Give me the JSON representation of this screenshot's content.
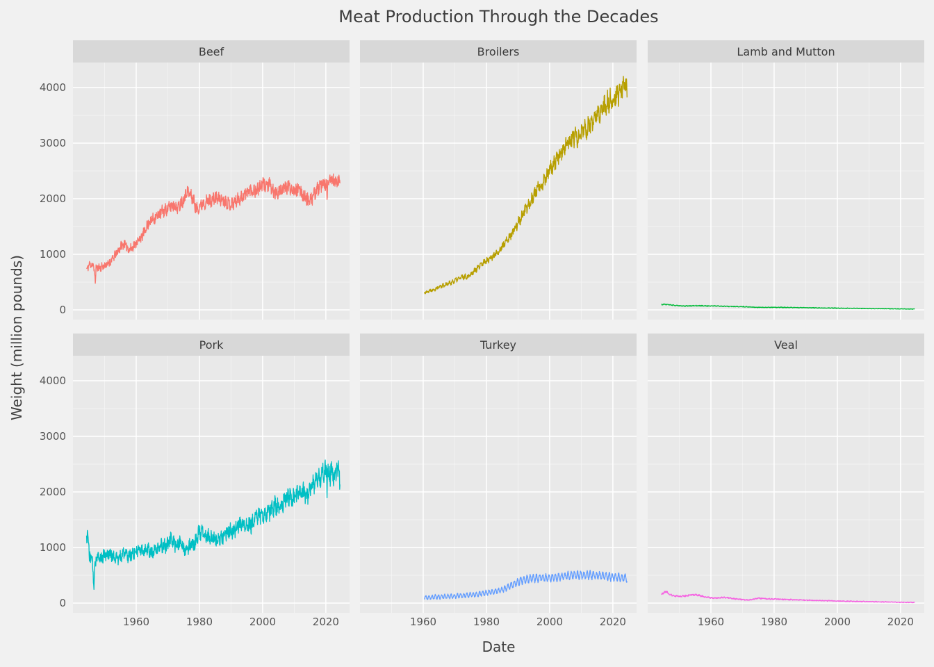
{
  "chart_data": {
    "type": "line",
    "title": "Meat Production Through the Decades",
    "xlabel": "Date",
    "ylabel": "Weight (million pounds)",
    "legend": "none",
    "grid": "white major and minor gridlines on grey panels",
    "x_ticks": [
      1960,
      1980,
      2000,
      2020
    ],
    "y_ticks": [
      0,
      1000,
      2000,
      3000,
      4000
    ],
    "x_minor_gridlines": [
      1950,
      1970,
      1990,
      2010
    ],
    "y_minor_gridlines": [
      500,
      1500,
      2500,
      3500
    ],
    "x_domain": [
      1940,
      2027.5
    ],
    "y_domain": [
      -175,
      4450
    ],
    "colors": {
      "page_bg": "#F1F1F1",
      "panel_bg": "#E9E9E9",
      "strip_bg": "#D8D8D8",
      "gridline": "#FFFFFF",
      "title_text": "#3d3d3d",
      "tick_text": "#555555"
    },
    "facets": [
      {
        "name": "Beef",
        "color": "#F8766D",
        "start_year": 1944.3,
        "end_year": 2024.5,
        "trend_anchors": [
          [
            1944.3,
            720
          ],
          [
            1945,
            800
          ],
          [
            1946,
            830
          ],
          [
            1946.9,
            700
          ],
          [
            1947.05,
            420
          ],
          [
            1947.3,
            760
          ],
          [
            1949,
            770
          ],
          [
            1951,
            820
          ],
          [
            1953,
            950
          ],
          [
            1955,
            1130
          ],
          [
            1956,
            1190
          ],
          [
            1958,
            1080
          ],
          [
            1960,
            1200
          ],
          [
            1962,
            1330
          ],
          [
            1964,
            1580
          ],
          [
            1966,
            1660
          ],
          [
            1968,
            1760
          ],
          [
            1970,
            1820
          ],
          [
            1972,
            1900
          ],
          [
            1973,
            1820
          ],
          [
            1975,
            2000
          ],
          [
            1976,
            2150
          ],
          [
            1978,
            2000
          ],
          [
            1979,
            1810
          ],
          [
            1981,
            1920
          ],
          [
            1983,
            1960
          ],
          [
            1985,
            2010
          ],
          [
            1987,
            1990
          ],
          [
            1990,
            1900
          ],
          [
            1992,
            1980
          ],
          [
            1994,
            2060
          ],
          [
            1996,
            2160
          ],
          [
            1998,
            2150
          ],
          [
            2000,
            2250
          ],
          [
            2002,
            2250
          ],
          [
            2004,
            2080
          ],
          [
            2006,
            2170
          ],
          [
            2008,
            2210
          ],
          [
            2010,
            2180
          ],
          [
            2012,
            2130
          ],
          [
            2014,
            1990
          ],
          [
            2015,
            1940
          ],
          [
            2017,
            2150
          ],
          [
            2019,
            2250
          ],
          [
            2020.2,
            2280
          ],
          [
            2020.35,
            1820
          ],
          [
            2020.6,
            2250
          ],
          [
            2021.5,
            2360
          ],
          [
            2023,
            2290
          ],
          [
            2024.5,
            2320
          ]
        ],
        "noise": {
          "base": 40,
          "prop": 0.035
        },
        "seasonal": {
          "base": 12,
          "prop": 0.008,
          "phase": 0
        },
        "seed": 11
      },
      {
        "name": "Broilers",
        "color": "#B79F00",
        "start_year": 1960.4,
        "end_year": 2024.5,
        "trend_anchors": [
          [
            1960.4,
            310
          ],
          [
            1962,
            345
          ],
          [
            1964,
            385
          ],
          [
            1966,
            435
          ],
          [
            1968,
            470
          ],
          [
            1970,
            525
          ],
          [
            1972,
            585
          ],
          [
            1974,
            600
          ],
          [
            1976,
            690
          ],
          [
            1978,
            790
          ],
          [
            1980,
            890
          ],
          [
            1982,
            960
          ],
          [
            1984,
            1060
          ],
          [
            1986,
            1210
          ],
          [
            1988,
            1360
          ],
          [
            1990,
            1560
          ],
          [
            1992,
            1760
          ],
          [
            1994,
            1960
          ],
          [
            1996,
            2160
          ],
          [
            1998,
            2310
          ],
          [
            2000,
            2510
          ],
          [
            2002,
            2670
          ],
          [
            2004,
            2870
          ],
          [
            2006,
            3020
          ],
          [
            2008,
            3130
          ],
          [
            2009,
            3060
          ],
          [
            2010,
            3200
          ],
          [
            2012,
            3270
          ],
          [
            2014,
            3400
          ],
          [
            2016,
            3560
          ],
          [
            2018,
            3710
          ],
          [
            2020,
            3800
          ],
          [
            2022,
            3900
          ],
          [
            2023.5,
            4020
          ],
          [
            2024.5,
            3960
          ]
        ],
        "noise": {
          "base": 12,
          "prop": 0.04
        },
        "seasonal": {
          "base": 8,
          "prop": 0.02,
          "phase": 0
        },
        "seed": 22
      },
      {
        "name": "Lamb and Mutton",
        "color": "#00BA38",
        "start_year": 1944.3,
        "end_year": 2024.5,
        "trend_anchors": [
          [
            1944.3,
            95
          ],
          [
            1945.5,
            100
          ],
          [
            1947,
            90
          ],
          [
            1949,
            78
          ],
          [
            1951,
            70
          ],
          [
            1953,
            71
          ],
          [
            1955,
            75
          ],
          [
            1957,
            74
          ],
          [
            1959,
            70
          ],
          [
            1961,
            72
          ],
          [
            1963,
            68
          ],
          [
            1965,
            63
          ],
          [
            1967,
            60
          ],
          [
            1969,
            58
          ],
          [
            1971,
            56
          ],
          [
            1973,
            50
          ],
          [
            1975,
            44
          ],
          [
            1978,
            44
          ],
          [
            1981,
            46
          ],
          [
            1984,
            43
          ],
          [
            1987,
            41
          ],
          [
            1990,
            40
          ],
          [
            1993,
            37
          ],
          [
            1996,
            34
          ],
          [
            1999,
            32
          ],
          [
            2002,
            30
          ],
          [
            2005,
            28
          ],
          [
            2008,
            26
          ],
          [
            2011,
            24
          ],
          [
            2014,
            22
          ],
          [
            2017,
            20
          ],
          [
            2020,
            18
          ],
          [
            2024.5,
            15
          ]
        ],
        "noise": {
          "base": 3.5,
          "prop": 0.04
        },
        "seasonal": {
          "base": 1.5,
          "prop": 0.02,
          "phase": 0
        },
        "seed": 33
      },
      {
        "name": "Pork",
        "color": "#00BFC4",
        "start_year": 1944.3,
        "end_year": 2024.5,
        "trend_anchors": [
          [
            1944.3,
            1180
          ],
          [
            1944.6,
            1260
          ],
          [
            1945.2,
            880
          ],
          [
            1945.8,
            800
          ],
          [
            1946.2,
            760
          ],
          [
            1946.45,
            420
          ],
          [
            1946.6,
            190
          ],
          [
            1946.9,
            720
          ],
          [
            1947.5,
            840
          ],
          [
            1948.5,
            790
          ],
          [
            1950,
            860
          ],
          [
            1951.5,
            890
          ],
          [
            1953,
            840
          ],
          [
            1954.5,
            790
          ],
          [
            1956,
            910
          ],
          [
            1957.5,
            840
          ],
          [
            1959,
            900
          ],
          [
            1960.5,
            940
          ],
          [
            1962,
            950
          ],
          [
            1963.5,
            970
          ],
          [
            1965,
            890
          ],
          [
            1966.5,
            950
          ],
          [
            1968,
            1040
          ],
          [
            1969.5,
            1030
          ],
          [
            1971,
            1140
          ],
          [
            1972.5,
            1040
          ],
          [
            1974,
            1090
          ],
          [
            1975.5,
            930
          ],
          [
            1977,
            1030
          ],
          [
            1978.5,
            1070
          ],
          [
            1980,
            1290
          ],
          [
            1981.5,
            1240
          ],
          [
            1983,
            1190
          ],
          [
            1984.5,
            1170
          ],
          [
            1986,
            1140
          ],
          [
            1987.5,
            1190
          ],
          [
            1989,
            1300
          ],
          [
            1990.5,
            1280
          ],
          [
            1992,
            1400
          ],
          [
            1993.5,
            1400
          ],
          [
            1995,
            1450
          ],
          [
            1996.5,
            1400
          ],
          [
            1998,
            1560
          ],
          [
            1999.5,
            1590
          ],
          [
            2001,
            1600
          ],
          [
            2002.5,
            1650
          ],
          [
            2004,
            1750
          ],
          [
            2005.5,
            1760
          ],
          [
            2007,
            1840
          ],
          [
            2008.5,
            1950
          ],
          [
            2010,
            1890
          ],
          [
            2011.5,
            1950
          ],
          [
            2013,
            2000
          ],
          [
            2014.5,
            1960
          ],
          [
            2016,
            2140
          ],
          [
            2017.5,
            2210
          ],
          [
            2019,
            2350
          ],
          [
            2020.2,
            2380
          ],
          [
            2020.35,
            2050
          ],
          [
            2020.6,
            2350
          ],
          [
            2021.5,
            2340
          ],
          [
            2022.5,
            2300
          ],
          [
            2023.5,
            2420
          ],
          [
            2024.5,
            2260
          ]
        ],
        "noise": {
          "base": 55,
          "prop": 0.05
        },
        "seasonal": {
          "base": 15,
          "prop": 0.025,
          "phase": 2.6
        },
        "seed": 44
      },
      {
        "name": "Turkey",
        "color": "#619CFF",
        "start_year": 1960.4,
        "end_year": 2024.5,
        "trend_anchors": [
          [
            1960.4,
            100
          ],
          [
            1962,
            105
          ],
          [
            1964,
            110
          ],
          [
            1966,
            116
          ],
          [
            1968,
            120
          ],
          [
            1970,
            126
          ],
          [
            1972,
            134
          ],
          [
            1974,
            140
          ],
          [
            1976,
            152
          ],
          [
            1978,
            166
          ],
          [
            1980,
            182
          ],
          [
            1982,
            202
          ],
          [
            1984,
            224
          ],
          [
            1986,
            262
          ],
          [
            1988,
            322
          ],
          [
            1990,
            382
          ],
          [
            1992,
            422
          ],
          [
            1994,
            440
          ],
          [
            1996,
            452
          ],
          [
            1998,
            452
          ],
          [
            2000,
            456
          ],
          [
            2002,
            462
          ],
          [
            2004,
            472
          ],
          [
            2006,
            492
          ],
          [
            2008,
            512
          ],
          [
            2010,
            500
          ],
          [
            2012,
            506
          ],
          [
            2014,
            500
          ],
          [
            2016,
            496
          ],
          [
            2018,
            482
          ],
          [
            2020,
            470
          ],
          [
            2022,
            462
          ],
          [
            2024.5,
            450
          ]
        ],
        "noise": {
          "base": 8,
          "prop": 0.035
        },
        "seasonal": {
          "base": 28,
          "prop": 0.075,
          "phase": -3.67
        },
        "seed": 55
      },
      {
        "name": "Veal",
        "color": "#F564E2",
        "start_year": 1944.3,
        "end_year": 2024.5,
        "trend_anchors": [
          [
            1944.3,
            165
          ],
          [
            1945,
            185
          ],
          [
            1946,
            205
          ],
          [
            1947,
            155
          ],
          [
            1948,
            132
          ],
          [
            1950,
            122
          ],
          [
            1952,
            132
          ],
          [
            1954,
            152
          ],
          [
            1956,
            142
          ],
          [
            1958,
            112
          ],
          [
            1960,
            96
          ],
          [
            1962,
            92
          ],
          [
            1964,
            102
          ],
          [
            1966,
            90
          ],
          [
            1968,
            76
          ],
          [
            1970,
            62
          ],
          [
            1972,
            56
          ],
          [
            1975,
            88
          ],
          [
            1977,
            82
          ],
          [
            1980,
            72
          ],
          [
            1983,
            66
          ],
          [
            1986,
            60
          ],
          [
            1990,
            52
          ],
          [
            1995,
            45
          ],
          [
            2000,
            38
          ],
          [
            2005,
            31
          ],
          [
            2010,
            26
          ],
          [
            2015,
            20
          ],
          [
            2020,
            15
          ],
          [
            2024.5,
            12
          ]
        ],
        "noise": {
          "base": 5,
          "prop": 0.06
        },
        "seasonal": {
          "base": 2,
          "prop": 0.02,
          "phase": 0
        },
        "seed": 66
      }
    ]
  }
}
